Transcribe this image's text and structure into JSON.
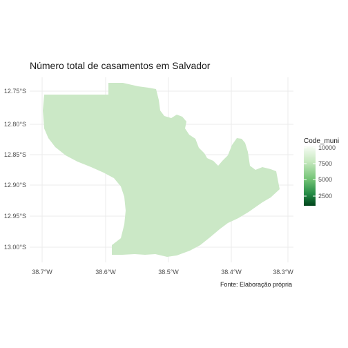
{
  "map": {
    "title": "Número total de casamentos em Salvador",
    "caption": "Fonte: Elaboração própria",
    "x_ticks": [
      "38.7°W",
      "38.6°W",
      "38.5°W",
      "38.4°W",
      "38.3°W"
    ],
    "y_ticks": [
      "12.75°S",
      "12.80°S",
      "12.85°S",
      "12.90°S",
      "12.95°S",
      "13.00°S"
    ],
    "region_fill": "#cbe8c6",
    "legend": {
      "title": "Code_muni",
      "labels": [
        "10000",
        "7500",
        "5000",
        "2500"
      ],
      "colors": [
        "#f7fcf5",
        "#c7e9c0",
        "#74c476",
        "#238b45",
        "#00441b"
      ]
    }
  }
}
